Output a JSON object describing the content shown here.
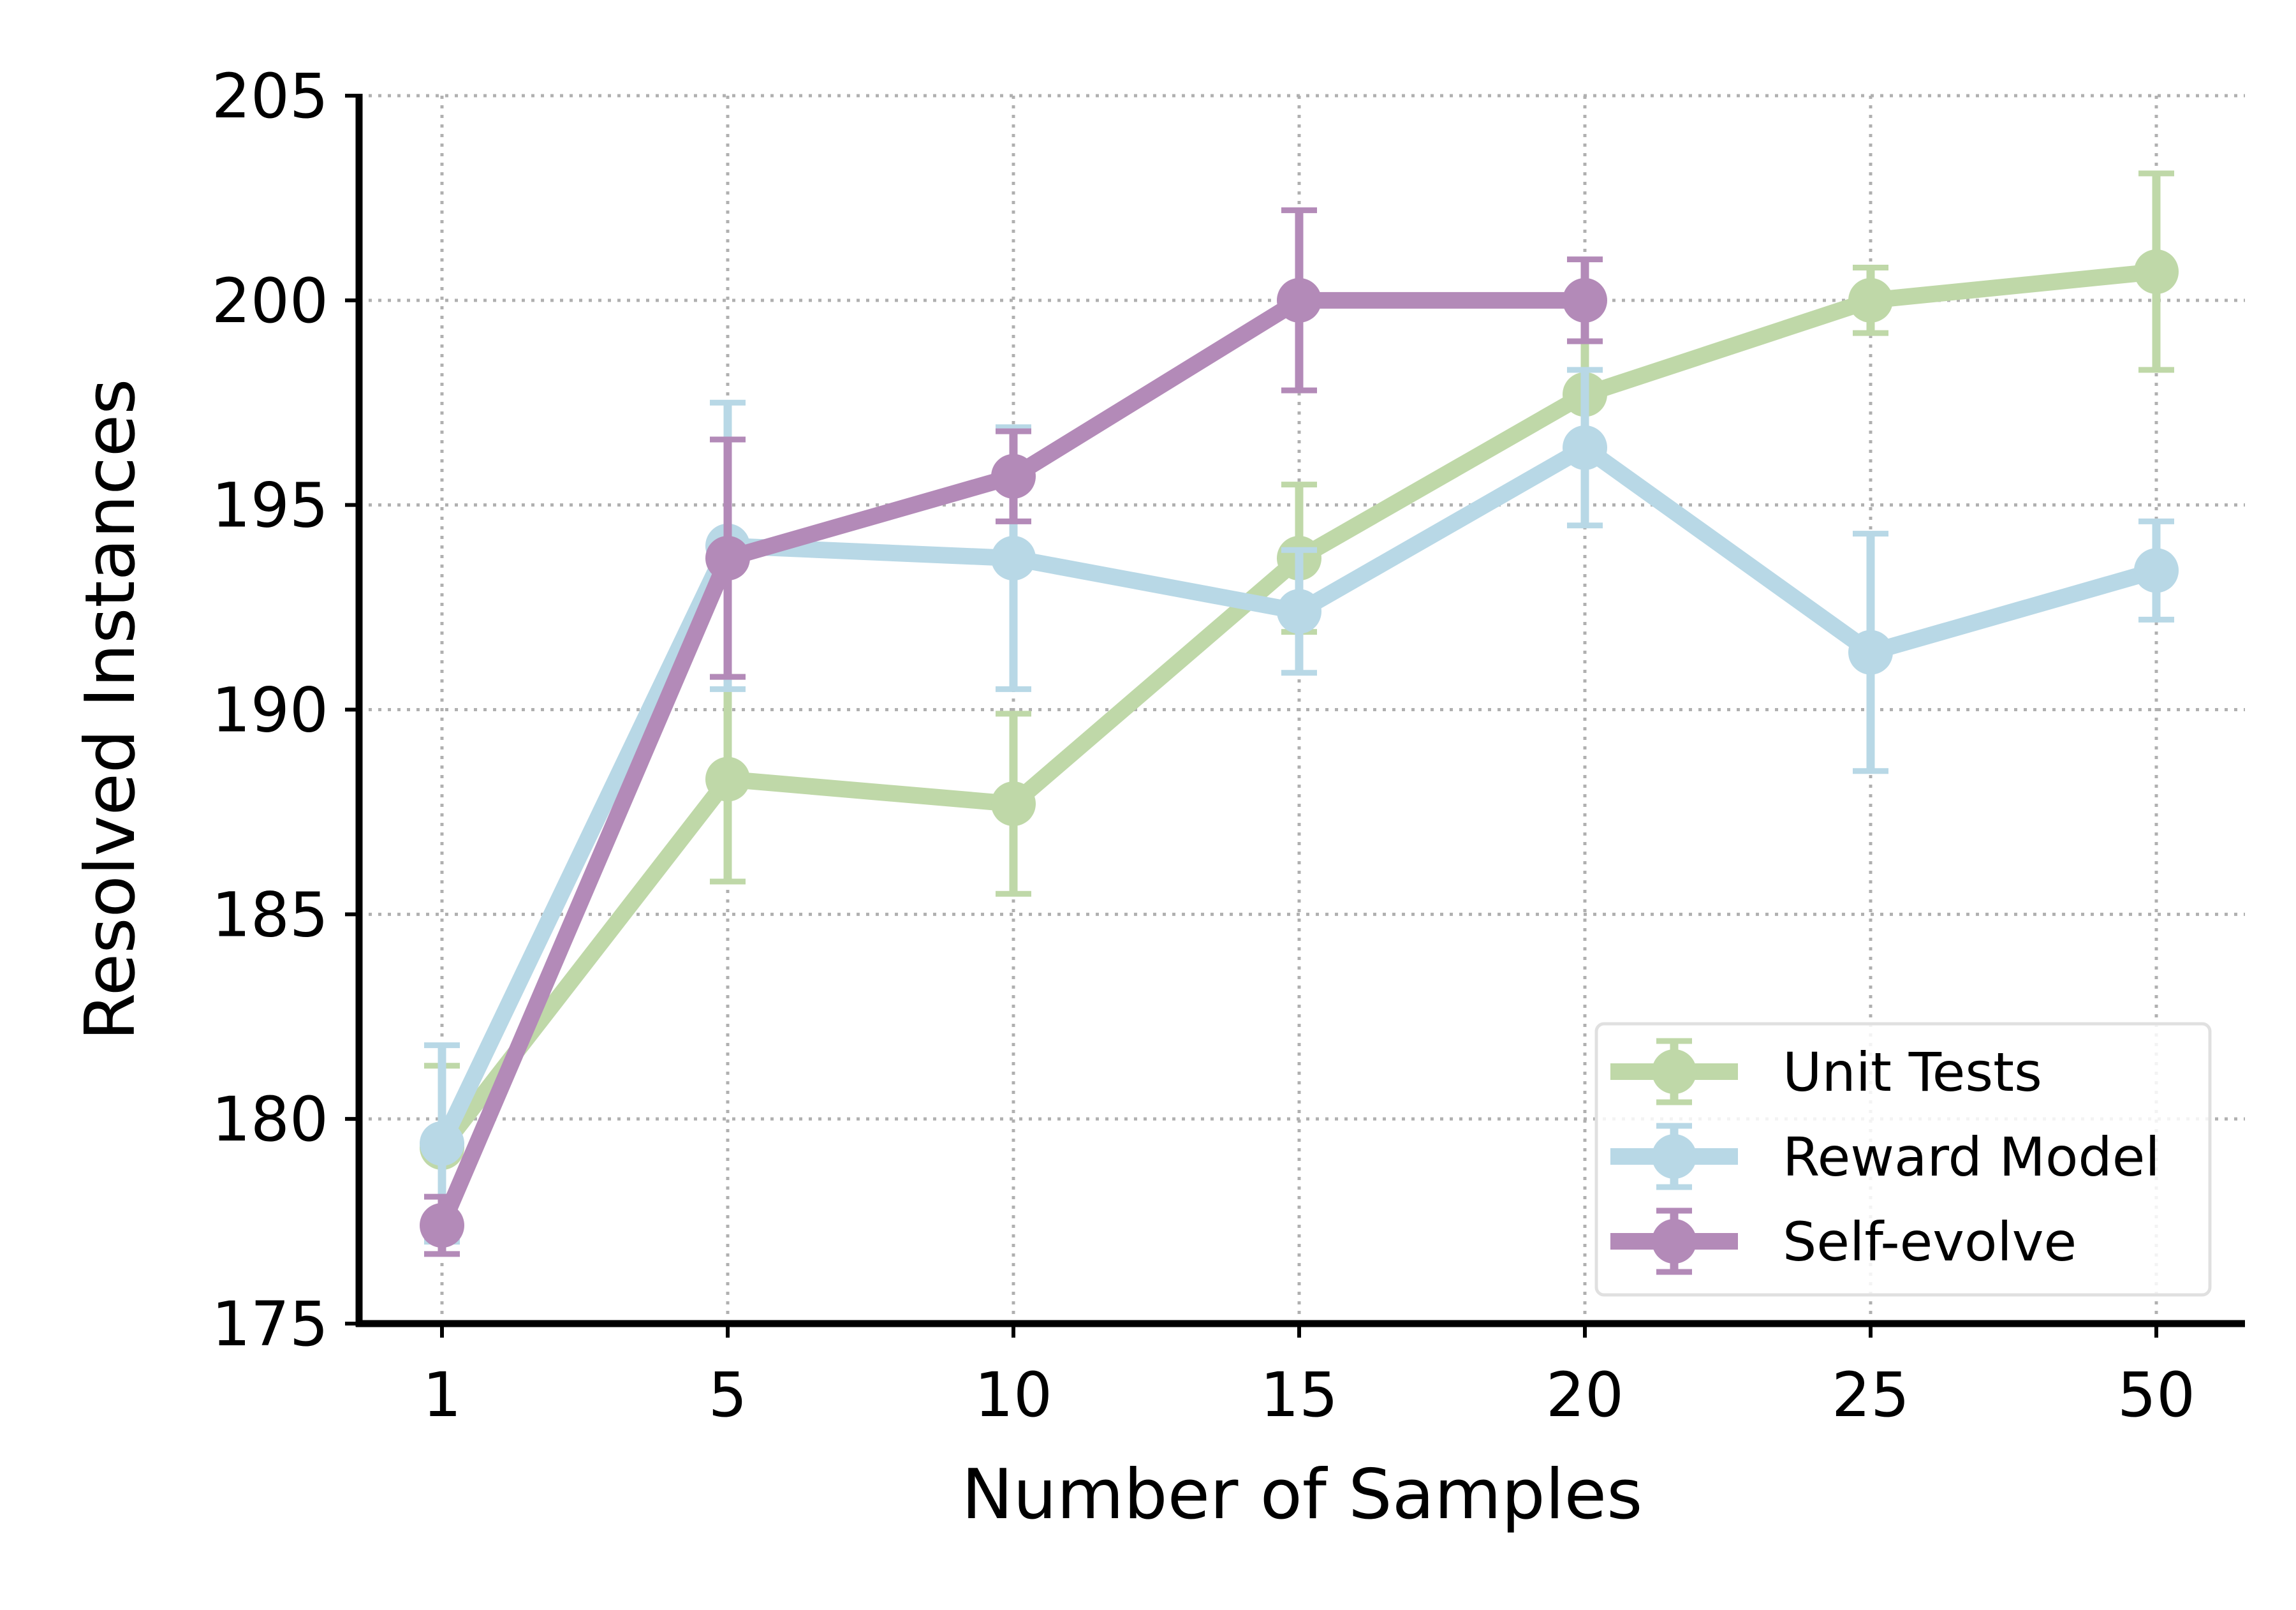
{
  "chart_data": {
    "type": "line",
    "title": "",
    "xlabel": "Number of Samples",
    "ylabel": "Resolved Instances",
    "categories": [
      "1",
      "5",
      "10",
      "15",
      "20",
      "25",
      "50"
    ],
    "ylim": [
      175,
      205
    ],
    "yticks": [
      175,
      180,
      185,
      190,
      195,
      200,
      205
    ],
    "grid": true,
    "grid_style": "dotted",
    "error_bars": true,
    "legend_position": "lower-right",
    "series": [
      {
        "name": "Unit Tests",
        "color": "#bfd8a8",
        "values": [
          179.3,
          188.3,
          187.7,
          193.7,
          197.7,
          200.0,
          200.7
        ],
        "errors": [
          2.0,
          2.5,
          2.2,
          1.8,
          1.3,
          0.8,
          2.4
        ]
      },
      {
        "name": "Reward Model",
        "color": "#b8d8e6",
        "values": [
          179.4,
          194.0,
          193.7,
          192.4,
          196.4,
          191.4,
          193.4
        ],
        "errors": [
          2.4,
          3.5,
          3.2,
          1.5,
          1.9,
          2.9,
          1.2
        ]
      },
      {
        "name": "Self-evolve",
        "color": "#b38ab8",
        "values": [
          177.4,
          193.7,
          195.7,
          200.0,
          200.0,
          null,
          null
        ],
        "errors": [
          0.7,
          2.9,
          1.1,
          2.2,
          1.0,
          null,
          null
        ]
      }
    ]
  }
}
